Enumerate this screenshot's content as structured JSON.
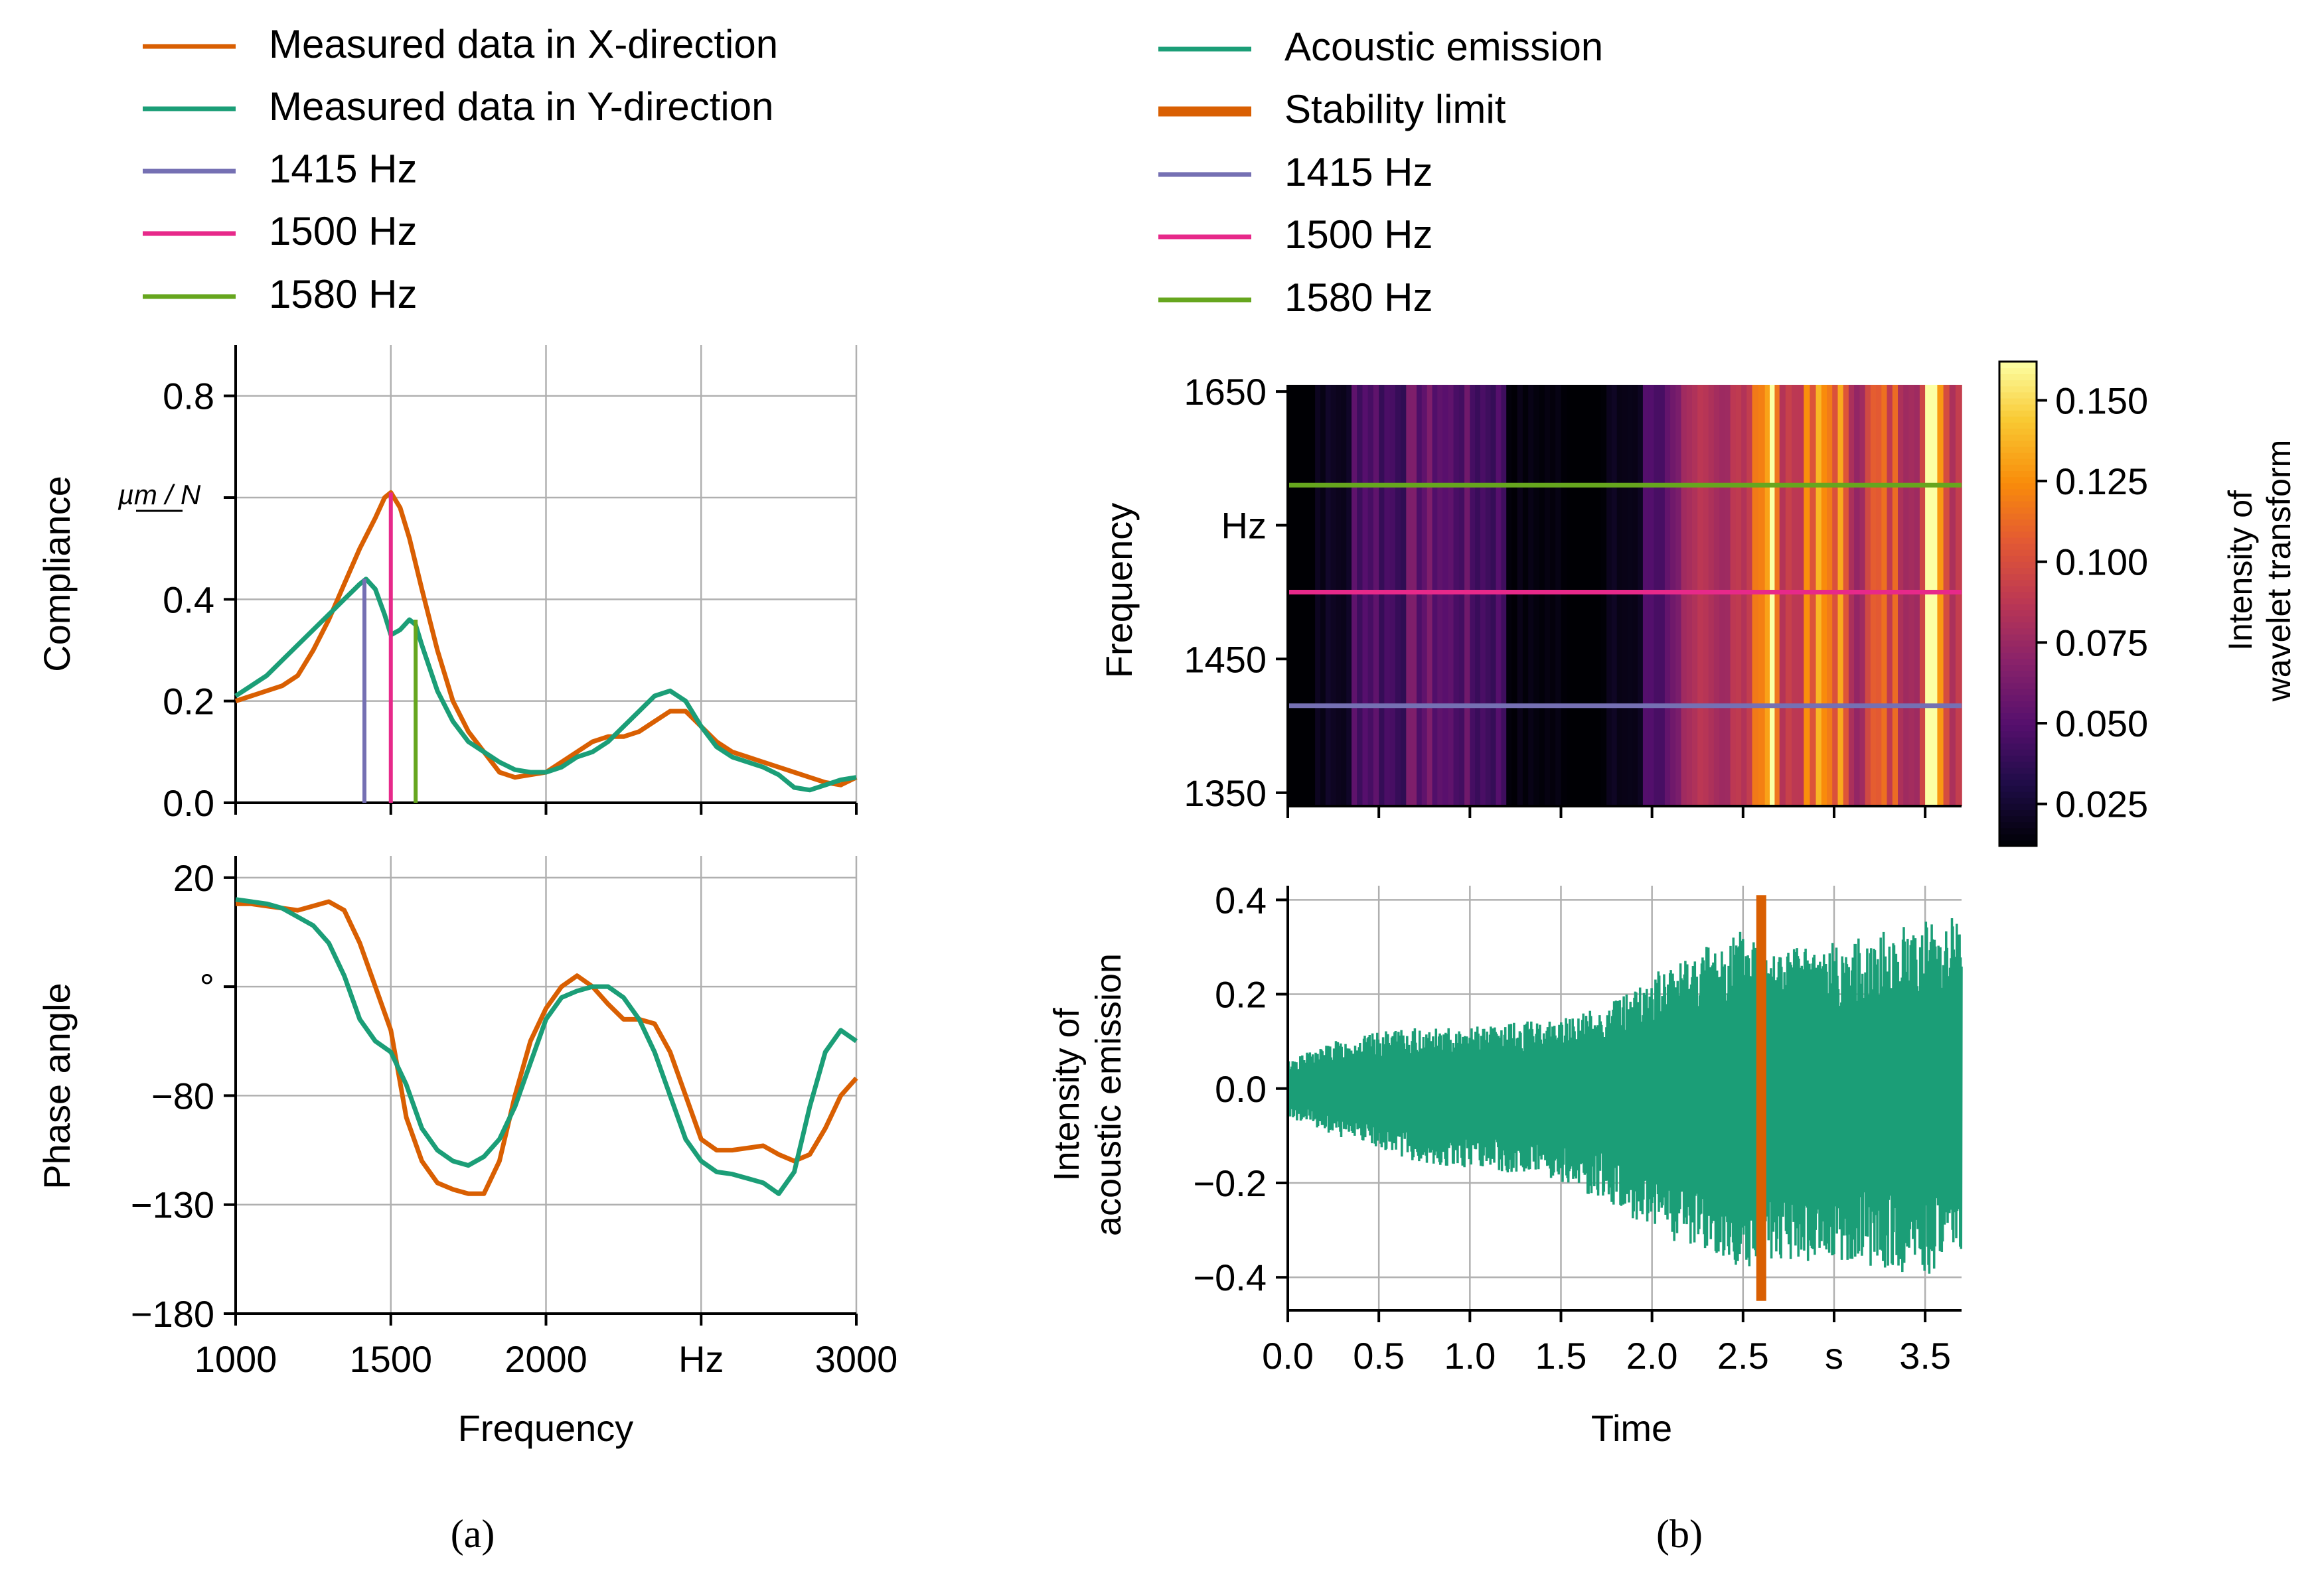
{
  "colors": {
    "x_dir": "#d95f02",
    "y_dir": "#1b9e77",
    "f1415": "#7570b3",
    "f1500": "#e7298a",
    "f1580": "#66a61e",
    "stability": "#d95f02",
    "grid": "#b0b0b0"
  },
  "chart_data": [
    {
      "id": "compliance",
      "type": "line",
      "panel": "(a)",
      "ylabel": "Compliance",
      "yunit": "µm / N",
      "xlim": [
        1000,
        3000
      ],
      "ylim": [
        0,
        0.9
      ],
      "yticks": [
        {
          "v": 0.0,
          "label": "0.0"
        },
        {
          "v": 0.2,
          "label": "0.2"
        },
        {
          "v": 0.4,
          "label": "0.4"
        },
        {
          "v": 0.6,
          "label": ""
        },
        {
          "v": 0.8,
          "label": "0.8"
        }
      ],
      "series": [
        {
          "name": "Measured data in X-direction",
          "color_key": "x_dir",
          "x": [
            1000,
            1050,
            1100,
            1150,
            1200,
            1250,
            1300,
            1350,
            1400,
            1450,
            1480,
            1500,
            1530,
            1560,
            1600,
            1650,
            1700,
            1750,
            1800,
            1850,
            1900,
            1950,
            2000,
            2050,
            2100,
            2150,
            2200,
            2250,
            2300,
            2350,
            2400,
            2450,
            2500,
            2550,
            2600,
            2650,
            2700,
            2750,
            2800,
            2850,
            2900,
            2950,
            3000
          ],
          "y": [
            0.2,
            0.21,
            0.22,
            0.23,
            0.25,
            0.3,
            0.36,
            0.43,
            0.5,
            0.56,
            0.6,
            0.61,
            0.58,
            0.52,
            0.42,
            0.3,
            0.2,
            0.14,
            0.1,
            0.06,
            0.05,
            0.055,
            0.06,
            0.08,
            0.1,
            0.12,
            0.13,
            0.13,
            0.14,
            0.16,
            0.18,
            0.18,
            0.15,
            0.12,
            0.1,
            0.09,
            0.08,
            0.07,
            0.06,
            0.05,
            0.04,
            0.035,
            0.05
          ]
        },
        {
          "name": "Measured data in Y-direction",
          "color_key": "y_dir",
          "x": [
            1000,
            1050,
            1100,
            1150,
            1200,
            1250,
            1300,
            1350,
            1400,
            1420,
            1450,
            1480,
            1500,
            1530,
            1560,
            1580,
            1600,
            1650,
            1700,
            1750,
            1800,
            1850,
            1900,
            1950,
            2000,
            2050,
            2100,
            2150,
            2200,
            2250,
            2300,
            2350,
            2400,
            2450,
            2500,
            2550,
            2600,
            2650,
            2700,
            2750,
            2800,
            2850,
            2900,
            2950,
            3000
          ],
          "y": [
            0.21,
            0.23,
            0.25,
            0.28,
            0.31,
            0.34,
            0.37,
            0.4,
            0.43,
            0.44,
            0.42,
            0.37,
            0.33,
            0.34,
            0.36,
            0.35,
            0.31,
            0.22,
            0.16,
            0.12,
            0.1,
            0.08,
            0.065,
            0.06,
            0.06,
            0.07,
            0.09,
            0.1,
            0.12,
            0.15,
            0.18,
            0.21,
            0.22,
            0.2,
            0.15,
            0.11,
            0.09,
            0.08,
            0.07,
            0.055,
            0.03,
            0.025,
            0.035,
            0.045,
            0.05
          ]
        }
      ],
      "markers": [
        {
          "name": "1415 Hz",
          "x": 1415,
          "y": 0.44,
          "color_key": "f1415"
        },
        {
          "name": "1500 Hz",
          "x": 1500,
          "y": 0.61,
          "color_key": "f1500"
        },
        {
          "name": "1580 Hz",
          "x": 1580,
          "y": 0.36,
          "color_key": "f1580"
        }
      ],
      "legend": [
        "Measured data in X-direction",
        "Measured data in Y-direction",
        "1415 Hz",
        "1500 Hz",
        "1580 Hz"
      ]
    },
    {
      "id": "phase",
      "type": "line",
      "panel": "(a)",
      "ylabel": "Phase angle",
      "yunit": "°",
      "xlabel": "Frequency",
      "xlim": [
        1000,
        3000
      ],
      "ylim": [
        -180,
        30
      ],
      "xticks": [
        {
          "v": 1000,
          "label": "1000"
        },
        {
          "v": 1500,
          "label": "1500"
        },
        {
          "v": 2000,
          "label": "2000"
        },
        {
          "v": 2500,
          "label": "Hz"
        },
        {
          "v": 3000,
          "label": "3000"
        }
      ],
      "yticks": [
        {
          "v": 20,
          "label": "20"
        },
        {
          "v": -30,
          "label": "°"
        },
        {
          "v": -80,
          "label": "−80"
        },
        {
          "v": -130,
          "label": "−130"
        },
        {
          "v": -180,
          "label": "−180"
        }
      ],
      "series": [
        {
          "name": "Measured data in X-direction",
          "color_key": "x_dir",
          "x": [
            1000,
            1050,
            1100,
            1150,
            1200,
            1250,
            1300,
            1350,
            1400,
            1450,
            1500,
            1550,
            1600,
            1650,
            1700,
            1750,
            1800,
            1850,
            1900,
            1950,
            2000,
            2050,
            2100,
            2150,
            2200,
            2250,
            2300,
            2350,
            2400,
            2450,
            2500,
            2550,
            2600,
            2650,
            2700,
            2750,
            2800,
            2850,
            2900,
            2950,
            3000
          ],
          "y": [
            8,
            8,
            7,
            6,
            5,
            7,
            9,
            5,
            -10,
            -30,
            -50,
            -90,
            -110,
            -120,
            -123,
            -125,
            -125,
            -110,
            -80,
            -55,
            -40,
            -30,
            -25,
            -30,
            -38,
            -45,
            -45,
            -47,
            -60,
            -80,
            -100,
            -105,
            -105,
            -104,
            -103,
            -107,
            -110,
            -107,
            -95,
            -80,
            -72
          ]
        },
        {
          "name": "Measured data in Y-direction",
          "color_key": "y_dir",
          "x": [
            1000,
            1050,
            1100,
            1150,
            1200,
            1250,
            1300,
            1350,
            1400,
            1450,
            1500,
            1550,
            1600,
            1650,
            1700,
            1750,
            1800,
            1850,
            1900,
            1950,
            2000,
            2050,
            2100,
            2150,
            2200,
            2250,
            2300,
            2350,
            2400,
            2450,
            2500,
            2550,
            2600,
            2650,
            2700,
            2750,
            2800,
            2850,
            2900,
            2950,
            3000
          ],
          "y": [
            10,
            9,
            8,
            6,
            2,
            -2,
            -10,
            -25,
            -45,
            -55,
            -60,
            -75,
            -95,
            -105,
            -110,
            -112,
            -108,
            -100,
            -85,
            -65,
            -45,
            -35,
            -32,
            -30,
            -30,
            -35,
            -45,
            -60,
            -80,
            -100,
            -110,
            -115,
            -116,
            -118,
            -120,
            -125,
            -115,
            -85,
            -60,
            -50,
            -55
          ]
        }
      ]
    },
    {
      "id": "wavelet",
      "type": "heatmap",
      "panel": "(b)",
      "ylabel": "Frequency",
      "yunit": "Hz",
      "xlim": [
        0,
        3.7
      ],
      "ylim": [
        1340,
        1655
      ],
      "yticks": [
        {
          "v": 1350,
          "label": "1350"
        },
        {
          "v": 1450,
          "label": "1450"
        },
        {
          "v": 1550,
          "label": "Hz"
        },
        {
          "v": 1650,
          "label": "1650"
        }
      ],
      "xticks": [
        0,
        0.5,
        1.0,
        1.5,
        2.0,
        2.5,
        3.0,
        3.5
      ],
      "time_breaks": [
        0,
        0.15,
        0.35,
        0.5,
        0.65,
        0.85,
        1.0,
        1.2,
        1.5,
        1.75,
        1.95,
        2.1,
        2.25,
        2.4,
        2.55,
        2.62,
        2.7,
        2.8,
        2.9,
        3.05,
        3.2,
        3.35,
        3.5,
        3.6,
        3.7
      ],
      "intensities": [
        0.01,
        0.02,
        0.05,
        0.045,
        0.055,
        0.05,
        0.045,
        0.015,
        0.012,
        0.018,
        0.05,
        0.07,
        0.075,
        0.095,
        0.11,
        0.145,
        0.09,
        0.105,
        0.12,
        0.09,
        0.1,
        0.095,
        0.15,
        0.1
      ],
      "markers": [
        {
          "name": "1415 Hz",
          "y": 1415,
          "color_key": "f1415"
        },
        {
          "name": "1500 Hz",
          "y": 1500,
          "color_key": "f1500"
        },
        {
          "name": "1580 Hz",
          "y": 1580,
          "color_key": "f1580"
        }
      ],
      "colorbar": {
        "label_line1": "Intensity of",
        "label_line2": "wavelet transform",
        "min": 0.012,
        "max": 0.162,
        "ticks": [
          {
            "v": 0.025,
            "label": "0.025"
          },
          {
            "v": 0.05,
            "label": "0.050"
          },
          {
            "v": 0.075,
            "label": "0.075"
          },
          {
            "v": 0.1,
            "label": "0.100"
          },
          {
            "v": 0.125,
            "label": "0.125"
          },
          {
            "v": 0.15,
            "label": "0.150"
          }
        ]
      },
      "legend": [
        "Acoustic emission",
        "Stability limit",
        "1415 Hz",
        "1500 Hz",
        "1580 Hz"
      ]
    },
    {
      "id": "acoustic",
      "type": "line",
      "panel": "(b)",
      "ylabel_line1": "Intensity of",
      "ylabel_line2": "acoustic emission",
      "xlabel": "Time",
      "xlim": [
        0,
        3.7
      ],
      "ylim": [
        -0.47,
        0.43
      ],
      "xticks": [
        {
          "v": 0,
          "label": "0.0"
        },
        {
          "v": 0.5,
          "label": "0.5"
        },
        {
          "v": 1.0,
          "label": "1.0"
        },
        {
          "v": 1.5,
          "label": "1.5"
        },
        {
          "v": 2.0,
          "label": "2.0"
        },
        {
          "v": 2.5,
          "label": "2.5"
        },
        {
          "v": 3.0,
          "label": "s"
        },
        {
          "v": 3.5,
          "label": "3.5"
        }
      ],
      "yticks": [
        {
          "v": 0.4,
          "label": "0.4"
        },
        {
          "v": 0.2,
          "label": "0.2"
        },
        {
          "v": 0.0,
          "label": "0.0"
        },
        {
          "v": -0.2,
          "label": "−0.2"
        },
        {
          "v": -0.4,
          "label": "−0.4"
        }
      ],
      "envelope": {
        "t": [
          0,
          0.25,
          0.5,
          0.75,
          1.0,
          1.25,
          1.5,
          1.75,
          2.0,
          2.25,
          2.5,
          2.62,
          2.75,
          3.0,
          3.25,
          3.5,
          3.7
        ],
        "upper": [
          0.06,
          0.1,
          0.12,
          0.13,
          0.13,
          0.14,
          0.15,
          0.18,
          0.24,
          0.3,
          0.34,
          0.33,
          0.3,
          0.31,
          0.33,
          0.36,
          0.38
        ],
        "lower": [
          -0.06,
          -0.1,
          -0.13,
          -0.16,
          -0.17,
          -0.18,
          -0.2,
          -0.24,
          -0.3,
          -0.35,
          -0.38,
          -0.38,
          -0.37,
          -0.36,
          -0.38,
          -0.4,
          -0.34
        ]
      },
      "stability_limit_t": 2.6,
      "series_names": [
        "Acoustic emission",
        "Stability limit"
      ]
    }
  ],
  "captions": {
    "a": "(a)",
    "b": "(b)"
  }
}
